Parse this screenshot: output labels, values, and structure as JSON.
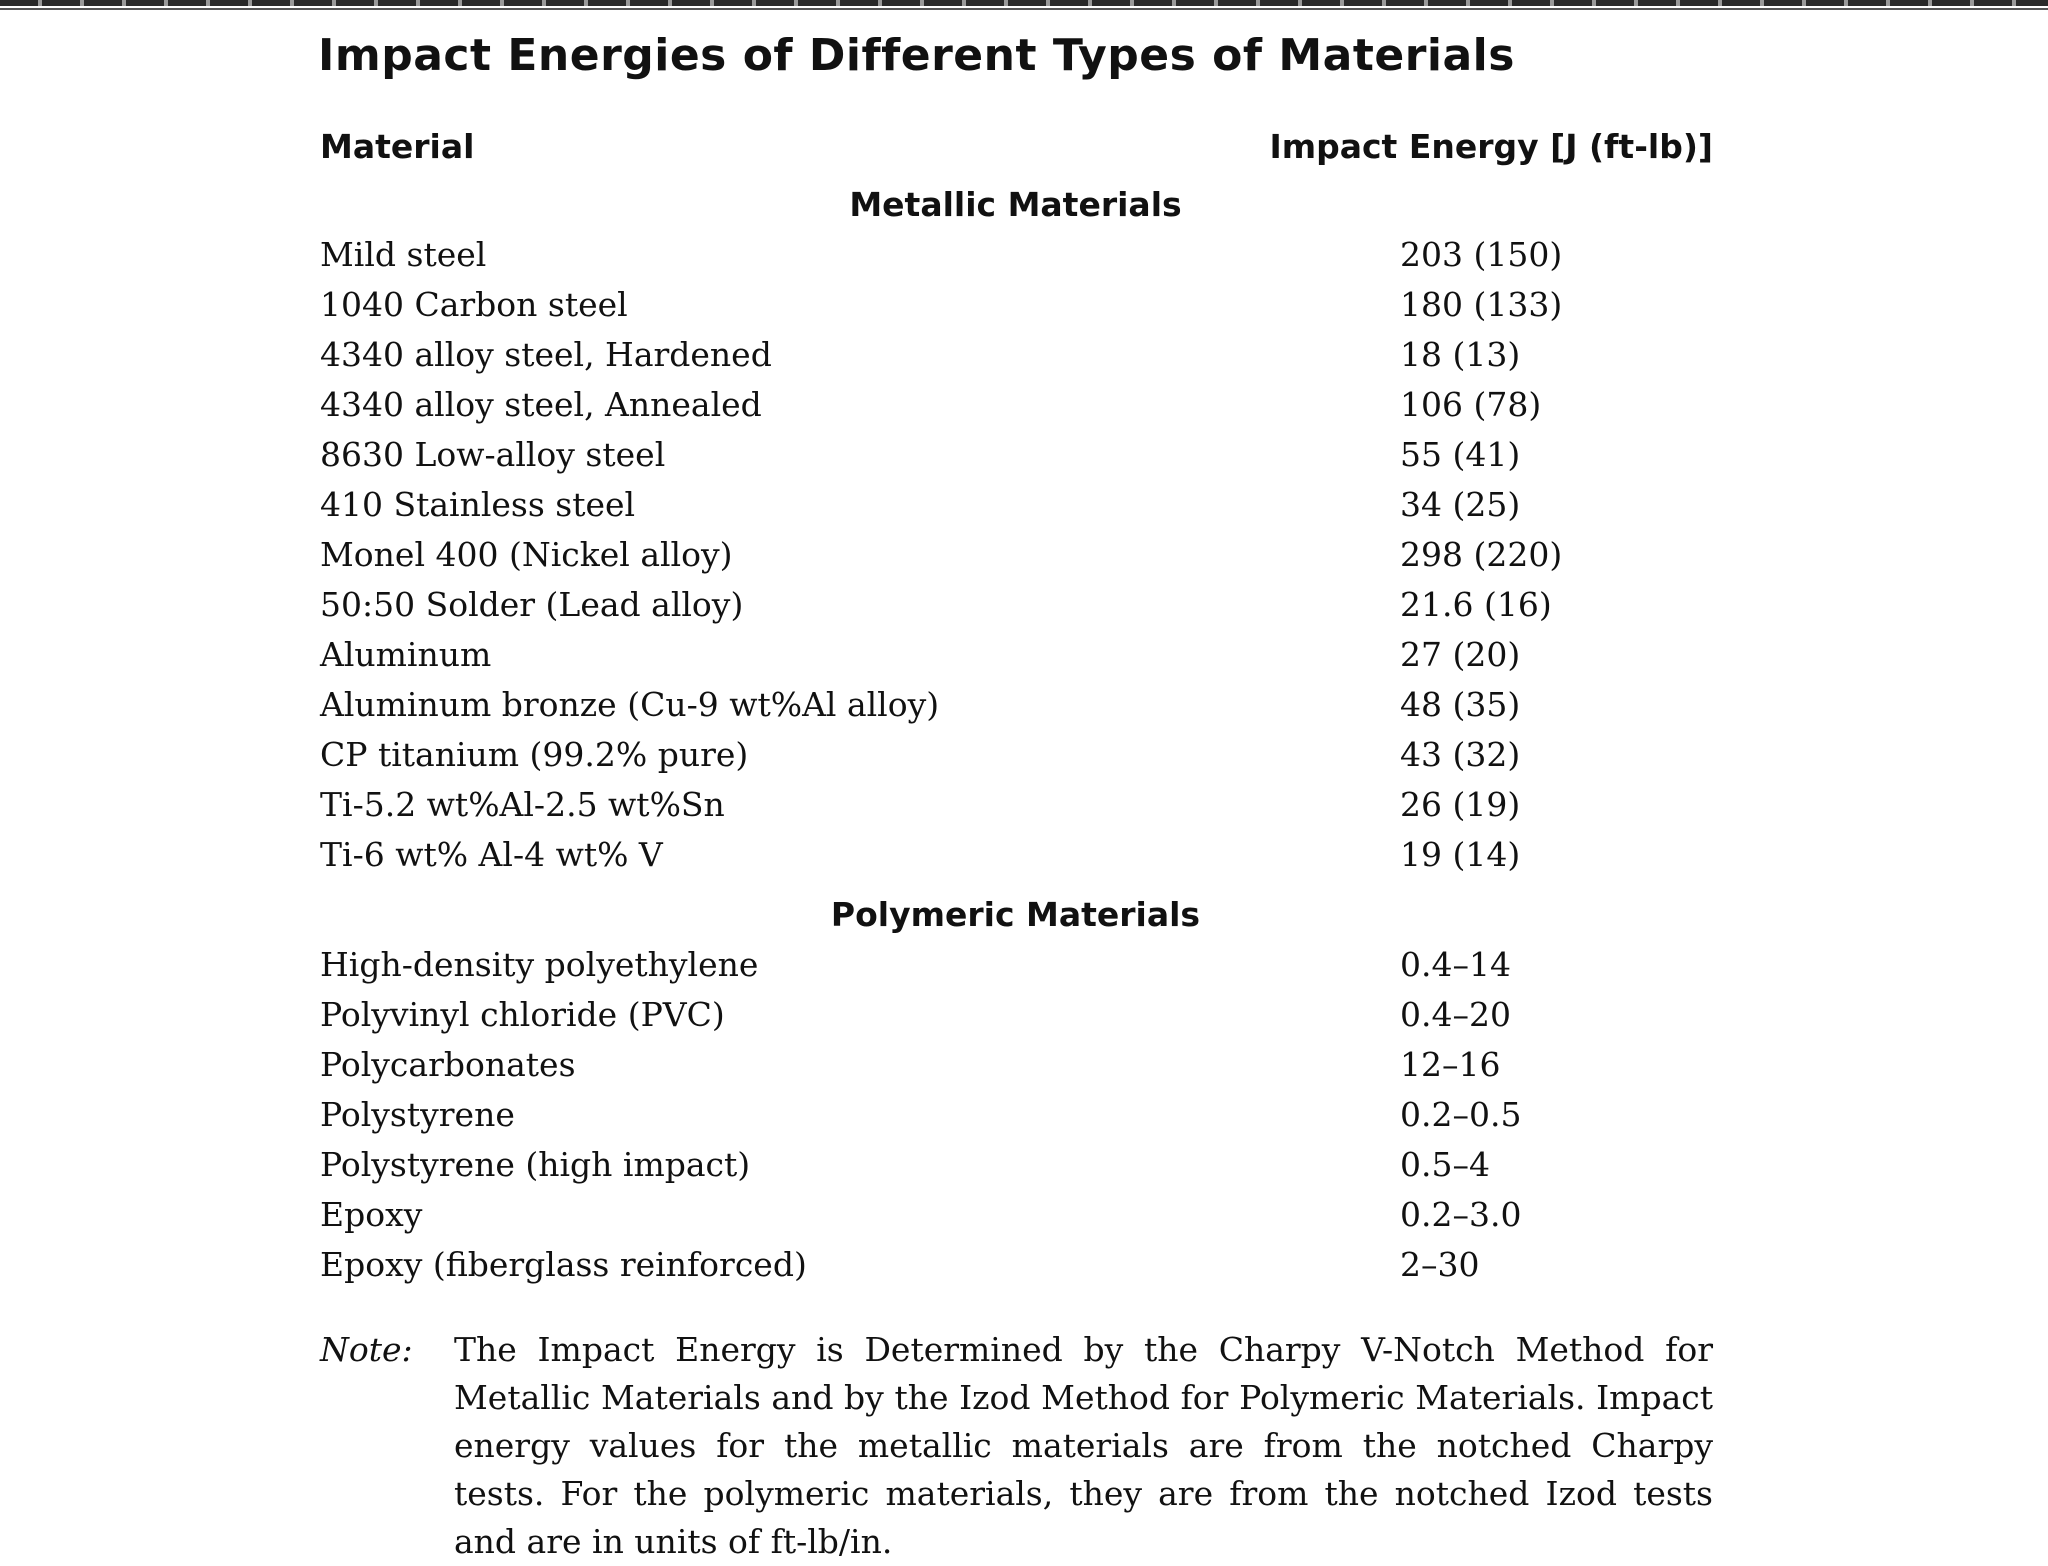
{
  "title": "Impact Energies of Different Types of Materials",
  "columns": {
    "material": "Material",
    "energy": "Impact Energy [J (ft-lb)]"
  },
  "metallic": {
    "heading": "Metallic Materials",
    "rows": [
      {
        "material": "Mild steel",
        "energy": "203 (150)"
      },
      {
        "material": "1040 Carbon steel",
        "energy": "180 (133)"
      },
      {
        "material": "4340 alloy steel, Hardened",
        "energy": "18 (13)"
      },
      {
        "material": "4340 alloy steel, Annealed",
        "energy": "106 (78)"
      },
      {
        "material": "8630 Low-alloy steel",
        "energy": "55 (41)"
      },
      {
        "material": "410 Stainless steel",
        "energy": "34 (25)"
      },
      {
        "material": "Monel 400 (Nickel alloy)",
        "energy": "298 (220)"
      },
      {
        "material": "50:50 Solder (Lead alloy)",
        "energy": "21.6 (16)"
      },
      {
        "material": "Aluminum",
        "energy": "27 (20)"
      },
      {
        "material": "Aluminum bronze (Cu-9 wt%Al alloy)",
        "energy": "48 (35)"
      },
      {
        "material": "CP titanium (99.2% pure)",
        "energy": "43 (32)"
      },
      {
        "material": "Ti-5.2 wt%Al-2.5 wt%Sn",
        "energy": "26 (19)"
      },
      {
        "material": "Ti-6 wt% Al-4 wt% V",
        "energy": "19 (14)"
      }
    ]
  },
  "polymeric": {
    "heading": "Polymeric Materials",
    "rows": [
      {
        "material": "High-density polyethylene",
        "energy": "0.4–14"
      },
      {
        "material": "Polyvinyl chloride (PVC)",
        "energy": "0.4–20"
      },
      {
        "material": "Polycarbonates",
        "energy": "12–16"
      },
      {
        "material": "Polystyrene",
        "energy": "0.2–0.5"
      },
      {
        "material": "Polystyrene (high impact)",
        "energy": "0.5–4"
      },
      {
        "material": "Epoxy",
        "energy": "0.2–3.0"
      },
      {
        "material": "Epoxy (fiberglass reinforced)",
        "energy": "2–30"
      }
    ]
  },
  "note": {
    "label": "Note:",
    "text": "The Impact Energy is Determined by the Charpy V-Notch Method for Metallic Materials and by the Izod Method for Polymeric Materials. Impact energy values for the metallic materials are from the notched Charpy tests. For the polymeric materials, they are from the notched Izod tests and are in units of ft-lb/in."
  }
}
